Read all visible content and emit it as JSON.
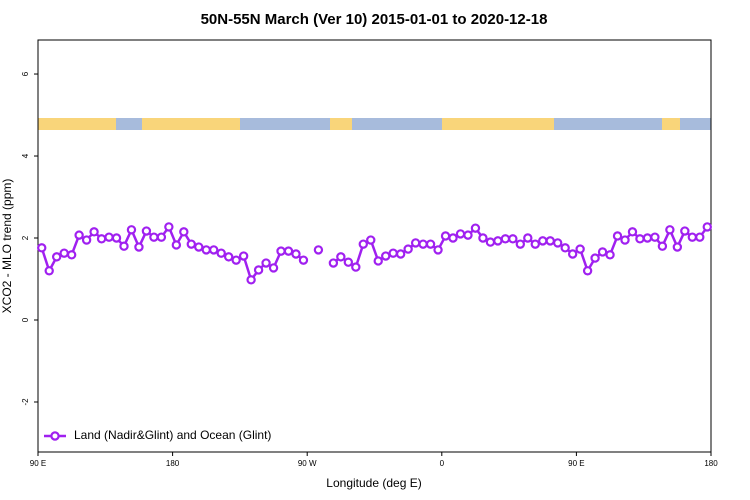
{
  "chart_data": {
    "type": "line",
    "title": "50N-55N March (Ver 10)   2015-01-01 to 2020-12-18",
    "x_label": "Longitude (deg E)",
    "y_label": "XCO2 - MLO trend (ppm)",
    "xlim": [
      90,
      540
    ],
    "ylim": [
      -3.22,
      6.83
    ],
    "xticks": [
      {
        "value": 90,
        "label": "90 E"
      },
      180,
      {
        "value": 270,
        "label": "90 W"
      },
      {
        "value": 360,
        "label": "0"
      },
      {
        "value": 450,
        "label": "90 E"
      },
      {
        "value": 540,
        "label": "180"
      }
    ],
    "yticks": [
      -2,
      0,
      2,
      4,
      6
    ],
    "legend": "bottom-left",
    "x": [
      92.5,
      97.5,
      102.5,
      107.5,
      112.5,
      117.5,
      122.5,
      127.5,
      132.5,
      137.5,
      142.5,
      147.5,
      152.5,
      157.5,
      162.5,
      167.5,
      172.5,
      177.5,
      182.5,
      187.5,
      192.5,
      197.5,
      202.5,
      207.5,
      212.5,
      217.5,
      222.5,
      227.5,
      232.5,
      237.5,
      242.5,
      247.5,
      252.5,
      257.5,
      262.5,
      267.5,
      272.5,
      277.5,
      282.5,
      287.5,
      292.5,
      297.5,
      302.5,
      307.5,
      312.5,
      317.5,
      322.5,
      327.5,
      332.5,
      337.5,
      342.5,
      347.5,
      352.5,
      357.5,
      362.5,
      367.5,
      372.5,
      377.5,
      382.5,
      387.5,
      392.5,
      397.5,
      402.5,
      407.5,
      412.5,
      417.5,
      422.5,
      427.5,
      432.5,
      437.5,
      442.5,
      447.5,
      452.5,
      457.5,
      462.5,
      467.5,
      472.5,
      477.5,
      482.5,
      487.5,
      492.5,
      497.5,
      502.5,
      507.5,
      512.5,
      517.5,
      522.5,
      527.5,
      532.5,
      537.5
    ],
    "series": [
      {
        "name": "Land (Nadir&Glint) and Ocean (Glint)",
        "color": "#a020f0",
        "values": [
          1.76,
          1.2,
          1.54,
          1.63,
          1.59,
          2.07,
          1.95,
          2.15,
          1.98,
          2.02,
          2.0,
          1.8,
          2.2,
          1.78,
          2.17,
          2.02,
          2.02,
          2.27,
          1.83,
          2.15,
          1.85,
          1.78,
          1.71,
          1.71,
          1.63,
          1.54,
          1.46,
          1.56,
          0.98,
          1.22,
          1.39,
          1.27,
          1.68,
          1.68,
          1.61,
          1.46,
          null,
          1.71,
          null,
          1.39,
          1.54,
          1.41,
          1.29,
          1.85,
          1.95,
          1.44,
          1.56,
          1.63,
          1.61,
          1.73,
          1.88,
          1.85,
          1.85,
          1.71,
          2.05,
          2.0,
          2.1,
          2.07,
          2.24,
          2.0,
          1.9,
          1.93,
          1.98,
          1.98,
          1.85,
          2.0,
          1.85,
          1.93,
          1.93,
          1.88,
          1.76,
          1.61,
          1.73,
          1.2,
          1.51,
          1.66,
          1.59,
          2.05,
          1.95,
          2.15,
          1.98,
          2.0,
          2.02,
          1.8,
          2.2,
          1.78,
          2.17,
          2.02,
          2.02,
          2.27
        ]
      }
    ]
  }
}
